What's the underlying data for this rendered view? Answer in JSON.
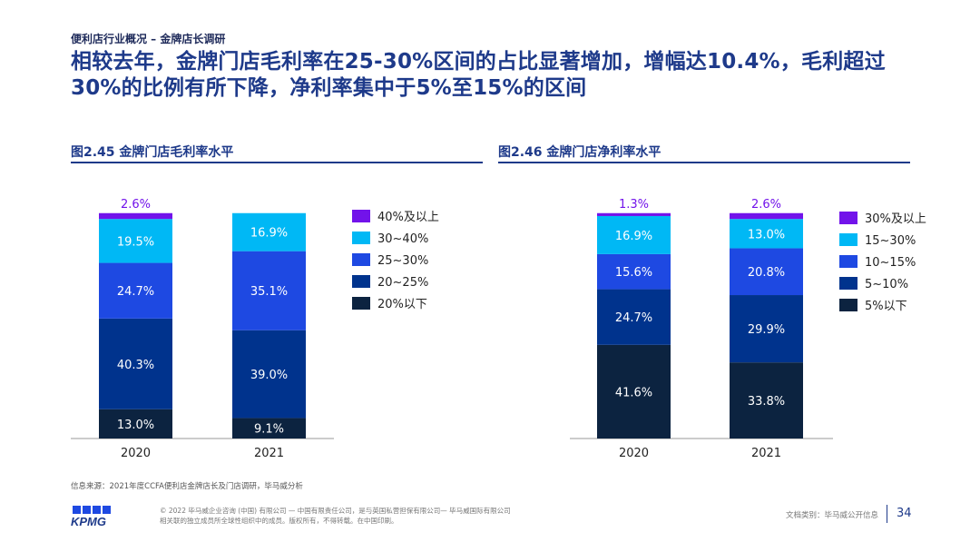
{
  "header": {
    "kicker": "便利店行业概况 – 金牌店长调研",
    "headline": "相较去年，金牌门店毛利率在25-30%区间的占比显著增加，增幅达10.4%，毛利超过30%的比例有所下降，净利率集中于5%至15%的区间"
  },
  "chart_data": [
    {
      "type": "bar",
      "stacked": true,
      "title": "图2.45 金牌门店毛利率水平",
      "categories": [
        "2020",
        "2021"
      ],
      "series": [
        {
          "name": "20%以下",
          "values": [
            13.0,
            9.1
          ],
          "color": "#0c2340"
        },
        {
          "name": "20~25%",
          "values": [
            40.3,
            39.0
          ],
          "color": "#00338d"
        },
        {
          "name": "25~30%",
          "values": [
            24.7,
            35.1
          ],
          "color": "#1e49e2"
        },
        {
          "name": "30~40%",
          "values": [
            19.5,
            16.9
          ],
          "color": "#00b8f5"
        },
        {
          "name": "40%及以上",
          "values": [
            2.6,
            0
          ],
          "color": "#7213ea"
        }
      ],
      "data_labels": [
        [
          "13.0%",
          "40.3%",
          "24.7%",
          "19.5%",
          "2.6%"
        ],
        [
          "9.1%",
          "39.0%",
          "35.1%",
          "16.9%",
          ""
        ]
      ],
      "ylim": [
        0,
        100
      ]
    },
    {
      "type": "bar",
      "stacked": true,
      "title": "图2.46 金牌门店净利率水平",
      "categories": [
        "2020",
        "2021"
      ],
      "series": [
        {
          "name": "5%以下",
          "values": [
            41.6,
            33.8
          ],
          "color": "#0c2340"
        },
        {
          "name": "5~10%",
          "values": [
            24.7,
            29.9
          ],
          "color": "#00338d"
        },
        {
          "name": "10~15%",
          "values": [
            15.6,
            20.8
          ],
          "color": "#1e49e2"
        },
        {
          "name": "15~30%",
          "values": [
            16.9,
            13.0
          ],
          "color": "#00b8f5"
        },
        {
          "name": "30%及以上",
          "values": [
            1.3,
            2.6
          ],
          "color": "#7213ea"
        }
      ],
      "data_labels": [
        [
          "41.6%",
          "24.7%",
          "15.6%",
          "16.9%",
          "1.3%"
        ],
        [
          "33.8%",
          "29.9%",
          "20.8%",
          "13.0%",
          "2.6%"
        ]
      ],
      "ylim": [
        0,
        100
      ]
    }
  ],
  "footer": {
    "source": "信息来源：2021年度CCFA便利店金牌店长及门店调研，毕马威分析",
    "logo_text": "KPMG",
    "copyright_line1": "© 2022 毕马威企业咨询 (中国) 有限公司 — 中国有限责任公司，是与英国私营担保有限公司— 毕马威国际有限公司",
    "copyright_line2": "相关联的独立成员所全球性组织中的成员。版权所有，不得转载。在中国印刷。",
    "doc_class": "文档类别：毕马威公开信息",
    "page_number": "34"
  }
}
